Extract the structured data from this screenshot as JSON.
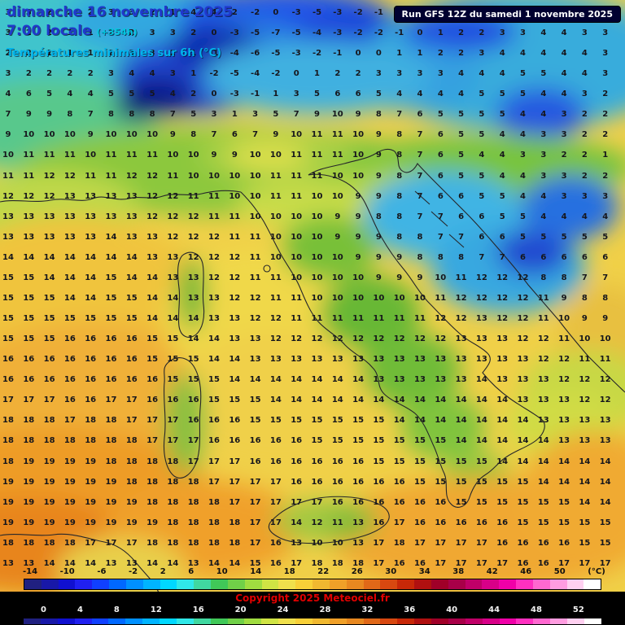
{
  "header": {
    "date_line": "dimanche 16 novembre 2025",
    "time_line": "7:00 locale",
    "offset": "(+354h)",
    "subtitle": "Températures minimales sur 6h (°C)",
    "run_info": "Run GFS 12Z du samedi 1 novembre 2025"
  },
  "footer": {
    "copyright": "Copyright 2025 Meteociel.fr",
    "scale_unit": "(°C)",
    "scale1_labels": [
      "-14",
      "-10",
      "-6",
      "-2",
      "2",
      "6",
      "10",
      "14",
      "18",
      "22",
      "26",
      "30",
      "34",
      "38",
      "42",
      "46",
      "50"
    ],
    "scale2_labels": [
      "0",
      "4",
      "8",
      "12",
      "16",
      "20",
      "24",
      "28",
      "32",
      "36",
      "40",
      "44",
      "48",
      "52"
    ],
    "palette": [
      "#202080",
      "#1818a8",
      "#1010d0",
      "#2020f0",
      "#1040ff",
      "#0068ff",
      "#0090ff",
      "#00b4ff",
      "#00d8ff",
      "#30e8e8",
      "#40d8a0",
      "#40c858",
      "#70d048",
      "#a0dc40",
      "#d0e444",
      "#f0e04c",
      "#f8d038",
      "#f0b830",
      "#f0a028",
      "#e88820",
      "#e06818",
      "#d84810",
      "#c82808",
      "#b01010",
      "#a00028",
      "#a80048",
      "#c00068",
      "#d80088",
      "#f000a8",
      "#ff30c0",
      "#ff68d0",
      "#ff9ce0",
      "#ffd0f0",
      "#ffffff"
    ]
  },
  "map": {
    "field_colors": {
      "coldest_core": "#071070",
      "cold_core": "#0a1a90",
      "cold": "#2050e0",
      "cool_cyan": "#38b0e8",
      "mild_green": "#7cc040",
      "warm_yellow": "#f0d84a",
      "hot_orange": "#ee9c28"
    },
    "grid": {
      "rows": [
        [
          3,
          3,
          2,
          2,
          2,
          3,
          3,
          2,
          1,
          4,
          4,
          2,
          -2,
          0,
          -3,
          -5,
          -3,
          -2,
          -1,
          -2,
          -2,
          0,
          1,
          2,
          2,
          3,
          3,
          4,
          4,
          3
        ],
        [
          3,
          2,
          2,
          1,
          1,
          2,
          2,
          3,
          3,
          2,
          0,
          -3,
          -5,
          -7,
          -5,
          -4,
          -3,
          -2,
          -2,
          -1,
          0,
          1,
          2,
          2,
          3,
          3,
          4,
          4,
          3,
          3
        ],
        [
          2,
          2,
          1,
          1,
          1,
          2,
          3,
          3,
          2,
          1,
          -1,
          -4,
          -6,
          -5,
          -3,
          -2,
          -1,
          0,
          0,
          1,
          1,
          2,
          2,
          3,
          4,
          4,
          4,
          4,
          4,
          3
        ],
        [
          3,
          2,
          2,
          2,
          2,
          3,
          4,
          4,
          3,
          1,
          -2,
          -5,
          -4,
          -2,
          0,
          1,
          2,
          2,
          3,
          3,
          3,
          3,
          4,
          4,
          4,
          5,
          5,
          4,
          4,
          3
        ],
        [
          4,
          6,
          5,
          4,
          4,
          5,
          5,
          5,
          4,
          2,
          0,
          -3,
          -1,
          1,
          3,
          5,
          6,
          6,
          5,
          4,
          4,
          4,
          4,
          5,
          5,
          5,
          4,
          4,
          3,
          2
        ],
        [
          7,
          9,
          9,
          8,
          7,
          8,
          8,
          8,
          7,
          5,
          3,
          1,
          3,
          5,
          7,
          9,
          10,
          9,
          8,
          7,
          6,
          5,
          5,
          5,
          5,
          4,
          4,
          3,
          2,
          2
        ],
        [
          9,
          10,
          10,
          10,
          9,
          10,
          10,
          10,
          9,
          8,
          7,
          6,
          7,
          9,
          10,
          11,
          11,
          10,
          9,
          8,
          7,
          6,
          5,
          5,
          4,
          4,
          3,
          3,
          2,
          2
        ],
        [
          10,
          11,
          11,
          11,
          10,
          11,
          11,
          11,
          10,
          10,
          9,
          9,
          10,
          10,
          11,
          11,
          11,
          10,
          9,
          8,
          7,
          6,
          5,
          4,
          4,
          3,
          3,
          2,
          2,
          1
        ],
        [
          11,
          11,
          12,
          12,
          11,
          11,
          12,
          12,
          11,
          10,
          10,
          10,
          10,
          11,
          11,
          11,
          10,
          10,
          9,
          8,
          7,
          6,
          5,
          5,
          4,
          4,
          3,
          3,
          2,
          2
        ],
        [
          12,
          12,
          12,
          13,
          13,
          13,
          13,
          12,
          12,
          11,
          11,
          10,
          10,
          11,
          11,
          10,
          10,
          9,
          9,
          8,
          7,
          6,
          6,
          5,
          5,
          4,
          4,
          3,
          3,
          3
        ],
        [
          13,
          13,
          13,
          13,
          13,
          13,
          13,
          12,
          12,
          12,
          11,
          11,
          10,
          10,
          10,
          10,
          9,
          9,
          8,
          8,
          7,
          7,
          6,
          6,
          5,
          5,
          4,
          4,
          4,
          4
        ],
        [
          13,
          13,
          13,
          13,
          13,
          14,
          13,
          13,
          12,
          12,
          12,
          11,
          11,
          10,
          10,
          10,
          9,
          9,
          9,
          8,
          8,
          7,
          7,
          6,
          6,
          5,
          5,
          5,
          5,
          5
        ],
        [
          14,
          14,
          14,
          14,
          14,
          14,
          14,
          13,
          13,
          12,
          12,
          12,
          11,
          10,
          10,
          10,
          10,
          9,
          9,
          9,
          8,
          8,
          8,
          7,
          7,
          6,
          6,
          6,
          6,
          6
        ],
        [
          15,
          15,
          14,
          14,
          14,
          15,
          14,
          14,
          13,
          13,
          12,
          12,
          11,
          11,
          10,
          10,
          10,
          10,
          9,
          9,
          9,
          10,
          11,
          12,
          12,
          12,
          8,
          8,
          7,
          7
        ],
        [
          15,
          15,
          15,
          14,
          14,
          15,
          15,
          14,
          14,
          13,
          13,
          12,
          12,
          11,
          11,
          10,
          10,
          10,
          10,
          10,
          10,
          11,
          12,
          12,
          12,
          12,
          11,
          9,
          8,
          8
        ],
        [
          15,
          15,
          15,
          15,
          15,
          15,
          15,
          14,
          14,
          14,
          13,
          13,
          12,
          12,
          11,
          11,
          11,
          11,
          11,
          11,
          11,
          12,
          12,
          13,
          12,
          12,
          11,
          10,
          9,
          9
        ],
        [
          15,
          15,
          15,
          16,
          16,
          16,
          16,
          15,
          15,
          14,
          14,
          13,
          13,
          12,
          12,
          12,
          12,
          12,
          12,
          12,
          12,
          12,
          13,
          13,
          13,
          12,
          12,
          11,
          10,
          10
        ],
        [
          16,
          16,
          16,
          16,
          16,
          16,
          16,
          15,
          15,
          15,
          14,
          14,
          13,
          13,
          13,
          13,
          13,
          13,
          13,
          13,
          13,
          13,
          13,
          13,
          13,
          13,
          12,
          12,
          11,
          11
        ],
        [
          16,
          16,
          16,
          16,
          16,
          16,
          16,
          16,
          15,
          15,
          15,
          14,
          14,
          14,
          14,
          14,
          14,
          14,
          13,
          13,
          13,
          13,
          13,
          14,
          13,
          13,
          13,
          12,
          12,
          12
        ],
        [
          17,
          17,
          17,
          16,
          16,
          17,
          17,
          16,
          16,
          16,
          15,
          15,
          15,
          14,
          14,
          14,
          14,
          14,
          14,
          14,
          14,
          14,
          14,
          14,
          14,
          13,
          13,
          13,
          12,
          12
        ],
        [
          18,
          18,
          18,
          17,
          18,
          18,
          17,
          17,
          17,
          16,
          16,
          16,
          15,
          15,
          15,
          15,
          15,
          15,
          15,
          14,
          14,
          14,
          14,
          14,
          14,
          14,
          13,
          13,
          13,
          13
        ],
        [
          18,
          18,
          18,
          18,
          18,
          18,
          18,
          17,
          17,
          17,
          16,
          16,
          16,
          16,
          16,
          15,
          15,
          15,
          15,
          15,
          15,
          15,
          14,
          14,
          14,
          14,
          14,
          13,
          13,
          13
        ],
        [
          18,
          19,
          19,
          19,
          19,
          18,
          18,
          18,
          18,
          17,
          17,
          17,
          16,
          16,
          16,
          16,
          16,
          16,
          15,
          15,
          15,
          15,
          15,
          15,
          14,
          14,
          14,
          14,
          14,
          14
        ],
        [
          19,
          19,
          19,
          19,
          19,
          19,
          18,
          18,
          18,
          18,
          17,
          17,
          17,
          17,
          16,
          16,
          16,
          16,
          16,
          16,
          15,
          15,
          15,
          15,
          15,
          15,
          14,
          14,
          14,
          14
        ],
        [
          19,
          19,
          19,
          19,
          19,
          19,
          19,
          18,
          18,
          18,
          18,
          17,
          17,
          17,
          17,
          17,
          16,
          16,
          16,
          16,
          16,
          16,
          15,
          15,
          15,
          15,
          15,
          15,
          14,
          14
        ],
        [
          19,
          19,
          19,
          19,
          19,
          19,
          19,
          19,
          18,
          18,
          18,
          18,
          17,
          17,
          14,
          12,
          11,
          13,
          16,
          17,
          16,
          16,
          16,
          16,
          16,
          15,
          15,
          15,
          15,
          15
        ],
        [
          18,
          18,
          18,
          18,
          17,
          17,
          17,
          18,
          18,
          18,
          18,
          18,
          17,
          16,
          13,
          10,
          10,
          13,
          17,
          18,
          17,
          17,
          17,
          17,
          16,
          16,
          16,
          16,
          15,
          15
        ],
        [
          13,
          13,
          14,
          14,
          14,
          13,
          13,
          14,
          14,
          13,
          14,
          14,
          15,
          16,
          17,
          18,
          18,
          18,
          17,
          16,
          16,
          17,
          17,
          17,
          17,
          16,
          16,
          17,
          17,
          17
        ]
      ]
    }
  }
}
